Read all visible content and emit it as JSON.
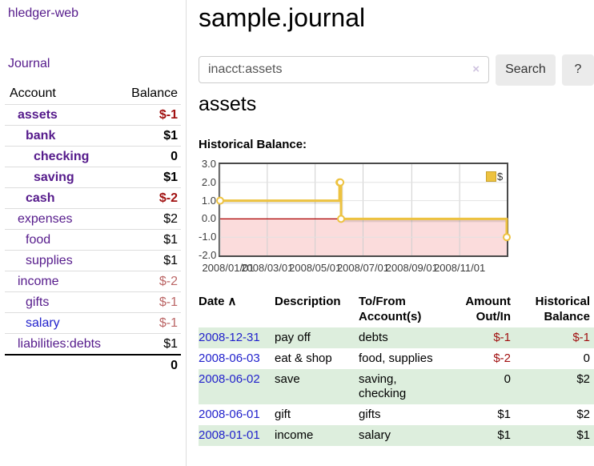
{
  "brand": {
    "label": "hledger-web"
  },
  "nav": {
    "journal": "Journal"
  },
  "header": {
    "title": "sample.journal"
  },
  "search": {
    "value": "inacct:assets",
    "clear_icon": "×",
    "search_button": "Search",
    "help_button": "?"
  },
  "account_page": {
    "heading": "assets",
    "chart_title": "Historical Balance:"
  },
  "sidebar_table": {
    "headers": [
      "Account",
      "Balance"
    ],
    "rows": [
      {
        "account": "assets",
        "depth": 1,
        "bold": true,
        "balance": "$-1",
        "balance_style": "negative"
      },
      {
        "account": "bank",
        "depth": 2,
        "bold": true,
        "balance": "$1",
        "balance_style": "normal"
      },
      {
        "account": "checking",
        "depth": 3,
        "bold": true,
        "balance": "0",
        "balance_style": "normal"
      },
      {
        "account": "saving",
        "depth": 3,
        "bold": true,
        "balance": "$1",
        "balance_style": "normal"
      },
      {
        "account": "cash",
        "depth": 2,
        "bold": true,
        "balance": "$-2",
        "balance_style": "negative"
      },
      {
        "account": "expenses",
        "depth": 1,
        "bold": false,
        "balance": "$2",
        "balance_style": "normal"
      },
      {
        "account": "food",
        "depth": 2,
        "bold": false,
        "balance": "$1",
        "balance_style": "normal"
      },
      {
        "account": "supplies",
        "depth": 2,
        "bold": false,
        "balance": "$1",
        "balance_style": "normal"
      },
      {
        "account": "income",
        "depth": 1,
        "bold": false,
        "balance": "$-2",
        "balance_style": "negative-muted"
      },
      {
        "account": "gifts",
        "depth": 2,
        "bold": false,
        "balance": "$-1",
        "balance_style": "negative-muted"
      },
      {
        "account": "salary",
        "depth": 2,
        "bold": false,
        "link_color": "blue",
        "balance": "$-1",
        "balance_style": "negative-muted"
      },
      {
        "account": "liabilities:debts",
        "depth": 1,
        "bold": false,
        "balance": "$1",
        "balance_style": "normal"
      }
    ],
    "total": "0"
  },
  "chart_data": {
    "type": "line",
    "step": true,
    "title": "Historical Balance",
    "series": [
      {
        "name": "$",
        "color": "#edc240",
        "points": [
          [
            "2008-01-01",
            1
          ],
          [
            "2008-06-01",
            2
          ],
          [
            "2008-06-02",
            2
          ],
          [
            "2008-06-03",
            0
          ],
          [
            "2008-12-31",
            -1
          ]
        ]
      }
    ],
    "xlim": [
      "2008-01-01",
      "2008-12-31"
    ],
    "ylim": [
      -2,
      3
    ],
    "ytick_values": [
      3,
      2,
      1,
      0,
      -1,
      -2
    ],
    "ytick_labels": [
      "3.0",
      "2.0",
      "1.0",
      "0.0",
      "-1.0",
      "-2.0"
    ],
    "xtick_values": [
      "2008-01-01",
      "2008-03-01",
      "2008-05-01",
      "2008-07-01",
      "2008-09-01",
      "2008-11-01"
    ],
    "xtick_labels": [
      "2008/01/01",
      "2008/03/01",
      "2008/05/01",
      "2008/07/01",
      "2008/09/01",
      "2008/11/01"
    ],
    "grid": true,
    "legend_position": "top-right",
    "negative_region_color": "#fbdcdc",
    "zero_line_color": "#aa0000",
    "marker": "circle"
  },
  "register": {
    "columns": [
      {
        "label": "Date"
      },
      {
        "label": "Description"
      },
      {
        "label": "To/From Account(s)"
      },
      {
        "label": "Amount Out/In"
      },
      {
        "label": "Historical Balance"
      }
    ],
    "sort_icon": "∧",
    "rows": [
      {
        "date": "2008-12-31",
        "description": "pay off",
        "accounts": "debts",
        "amount": "$-1",
        "balance": "$-1"
      },
      {
        "date": "2008-06-03",
        "description": "eat & shop",
        "accounts": "food, supplies",
        "amount": "$-2",
        "balance": "0"
      },
      {
        "date": "2008-06-02",
        "description": "save",
        "accounts": "saving, checking",
        "amount": "0",
        "balance": "$2"
      },
      {
        "date": "2008-06-01",
        "description": "gift",
        "accounts": "gifts",
        "amount": "$1",
        "balance": "$2"
      },
      {
        "date": "2008-01-01",
        "description": "income",
        "accounts": "salary",
        "amount": "$1",
        "balance": "$1"
      }
    ]
  },
  "colors": {
    "link_purple": "#551a8b",
    "link_blue": "#2222cc",
    "negative": "#a11111",
    "negative_muted": "#bb6666",
    "row_stripe_green": "#ddeedd",
    "chart_line_gold": "#edc240",
    "chart_negative_fill": "#fbdcdc",
    "chart_zero_line": "#aa0000"
  }
}
